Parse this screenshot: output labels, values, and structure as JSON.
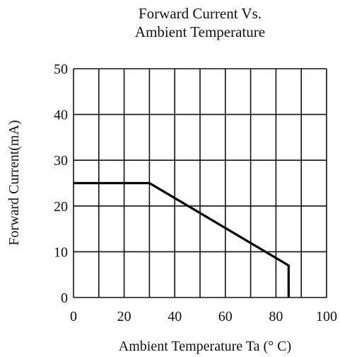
{
  "chart_data": {
    "type": "line",
    "title_lines": [
      "Forward  Current  Vs.",
      "Ambient Temperature"
    ],
    "xlabel": "Ambient  Temperature  Ta  (° C)",
    "ylabel": "Forward Current(mA)",
    "xlim": [
      0,
      100
    ],
    "ylim": [
      0,
      50
    ],
    "x_ticks": [
      0,
      20,
      40,
      60,
      80,
      100
    ],
    "y_ticks": [
      0,
      10,
      20,
      30,
      40,
      50
    ],
    "x_grid": [
      0,
      10,
      20,
      30,
      40,
      50,
      60,
      70,
      80,
      90,
      100
    ],
    "y_grid": [
      0,
      10,
      20,
      30,
      40,
      50
    ],
    "grid": true,
    "series": [
      {
        "x": [
          0,
          30,
          85,
          85
        ],
        "y": [
          25,
          25,
          7,
          0
        ]
      }
    ]
  }
}
